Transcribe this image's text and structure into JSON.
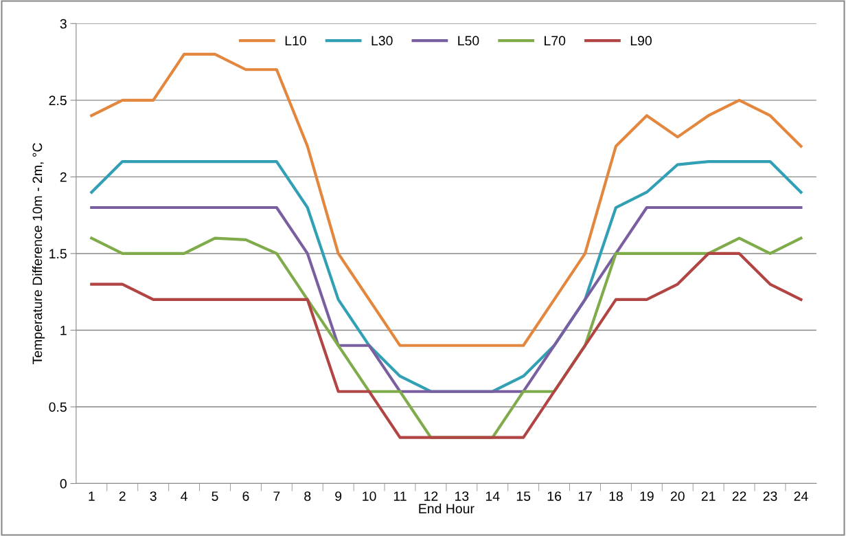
{
  "chart_data": {
    "type": "line",
    "xlabel": "End Hour",
    "ylabel": "Temperature Difference 10m - 2m, °C",
    "categories": [
      "1",
      "2",
      "3",
      "4",
      "5",
      "6",
      "7",
      "8",
      "9",
      "10",
      "11",
      "12",
      "13",
      "14",
      "15",
      "16",
      "17",
      "18",
      "19",
      "20",
      "21",
      "22",
      "23",
      "24"
    ],
    "series": [
      {
        "name": "L10",
        "color": "#e3873e",
        "values": [
          2.4,
          2.5,
          2.5,
          2.8,
          2.8,
          2.7,
          2.7,
          2.2,
          1.5,
          1.2,
          0.9,
          0.9,
          0.9,
          0.9,
          0.9,
          1.2,
          1.5,
          2.2,
          2.4,
          2.26,
          2.4,
          2.5,
          2.4,
          2.2
        ]
      },
      {
        "name": "L30",
        "color": "#31a0b5",
        "values": [
          1.9,
          2.1,
          2.1,
          2.1,
          2.1,
          2.1,
          2.1,
          1.8,
          1.2,
          0.9,
          0.7,
          0.6,
          0.6,
          0.6,
          0.7,
          0.9,
          1.2,
          1.8,
          1.9,
          2.08,
          2.1,
          2.1,
          2.1,
          1.9
        ]
      },
      {
        "name": "L50",
        "color": "#7a5fa0",
        "values": [
          1.8,
          1.8,
          1.8,
          1.8,
          1.8,
          1.8,
          1.8,
          1.5,
          0.9,
          0.9,
          0.6,
          0.6,
          0.6,
          0.6,
          0.6,
          0.9,
          1.2,
          1.5,
          1.8,
          1.8,
          1.8,
          1.8,
          1.8,
          1.8
        ]
      },
      {
        "name": "L70",
        "color": "#7fab4b",
        "values": [
          1.6,
          1.5,
          1.5,
          1.5,
          1.6,
          1.59,
          1.5,
          1.2,
          0.9,
          0.6,
          0.6,
          0.3,
          0.3,
          0.3,
          0.6,
          0.6,
          0.9,
          1.5,
          1.5,
          1.5,
          1.5,
          1.6,
          1.5,
          1.6
        ]
      },
      {
        "name": "L90",
        "color": "#b04543",
        "values": [
          1.3,
          1.3,
          1.2,
          1.2,
          1.2,
          1.2,
          1.2,
          1.2,
          0.6,
          0.6,
          0.3,
          0.3,
          0.3,
          0.3,
          0.3,
          0.6,
          0.9,
          1.2,
          1.2,
          1.3,
          1.5,
          1.5,
          1.3,
          1.2
        ]
      }
    ],
    "ylim": [
      0,
      3
    ],
    "yticks": [
      0,
      0.5,
      1,
      1.5,
      2,
      2.5,
      3
    ],
    "grid": "y",
    "legend": "top",
    "marker": "none",
    "line_style": "solid"
  }
}
